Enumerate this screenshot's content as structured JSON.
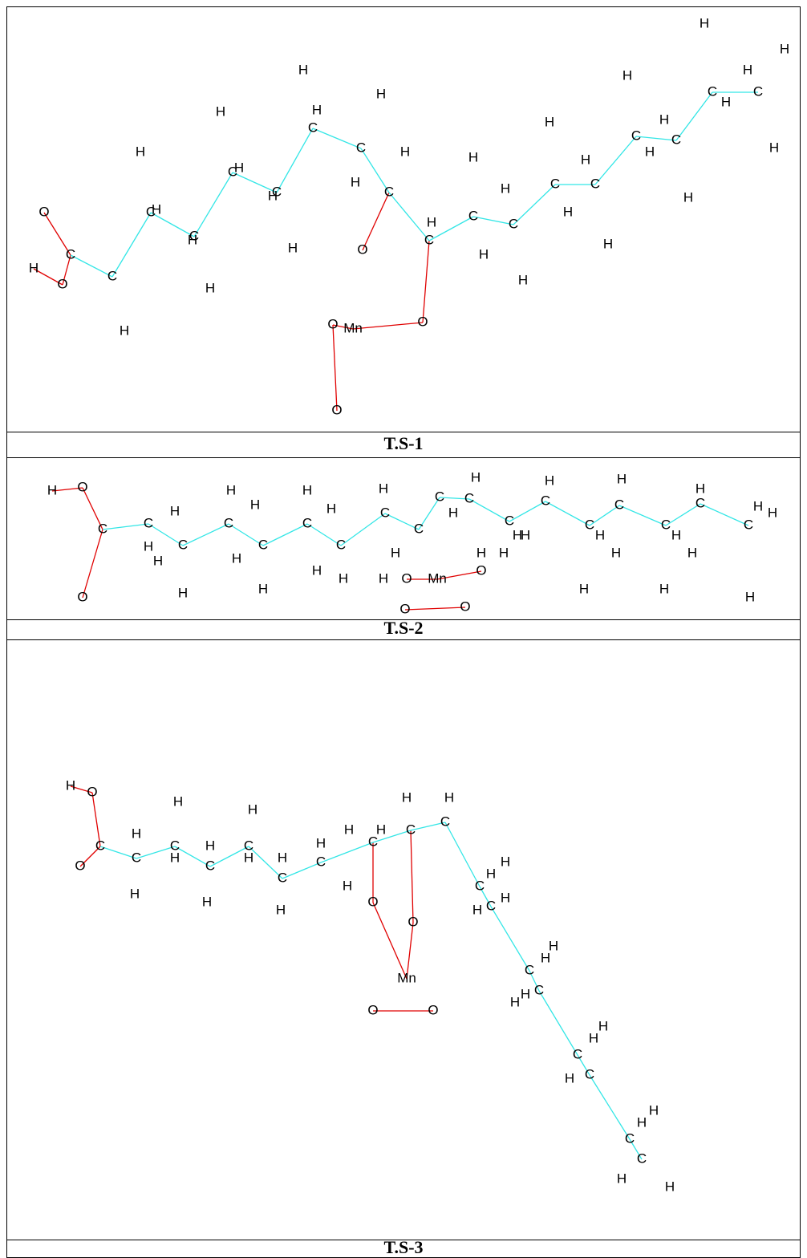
{
  "panels": [
    {
      "caption": "T.S-1",
      "atoms": [
        "O",
        "C",
        "O",
        "H",
        "C",
        "C",
        "C",
        "C",
        "C",
        "C",
        "C",
        "C",
        "C",
        "C",
        "C",
        "C",
        "C",
        "C",
        "C",
        "C",
        "C",
        "O",
        "O",
        "Mn",
        "O",
        "O",
        "H",
        "H",
        "H",
        "H",
        "H",
        "H",
        "H",
        "H",
        "H",
        "H",
        "H",
        "H",
        "H",
        "H",
        "H",
        "H",
        "H",
        "H",
        "H",
        "H",
        "H",
        "H",
        "H",
        "H",
        "H",
        "H",
        "H",
        "H",
        "H",
        "H",
        "H",
        "H"
      ]
    },
    {
      "caption": "T.S-2",
      "atoms": [
        "H",
        "O",
        "C",
        "O",
        "C",
        "C",
        "C",
        "C",
        "C",
        "C",
        "C",
        "C",
        "C",
        "C",
        "C",
        "C",
        "C",
        "C",
        "C",
        "C",
        "C",
        "O",
        "Mn",
        "O",
        "O",
        "O",
        "H",
        "H",
        "H",
        "H",
        "H",
        "H",
        "H",
        "H",
        "H",
        "H",
        "H",
        "H",
        "H",
        "H",
        "H",
        "H",
        "H",
        "H",
        "H",
        "H",
        "H",
        "H",
        "H",
        "H",
        "H",
        "H",
        "H",
        "H",
        "H",
        "H",
        "H",
        "H",
        "H"
      ]
    },
    {
      "caption": "T.S-3",
      "atoms": [
        "H",
        "O",
        "C",
        "O",
        "C",
        "C",
        "C",
        "C",
        "C",
        "C",
        "C",
        "C",
        "C",
        "C",
        "C",
        "C",
        "C",
        "C",
        "C",
        "C",
        "C",
        "O",
        "O",
        "Mn",
        "O",
        "O",
        "H",
        "H",
        "H",
        "H",
        "H",
        "H",
        "H",
        "H",
        "H",
        "H",
        "H",
        "H",
        "H",
        "H",
        "H",
        "H",
        "H",
        "H",
        "H",
        "H",
        "H",
        "H",
        "H",
        "H",
        "H",
        "H",
        "H",
        "H",
        "H",
        "H",
        "H"
      ]
    }
  ]
}
